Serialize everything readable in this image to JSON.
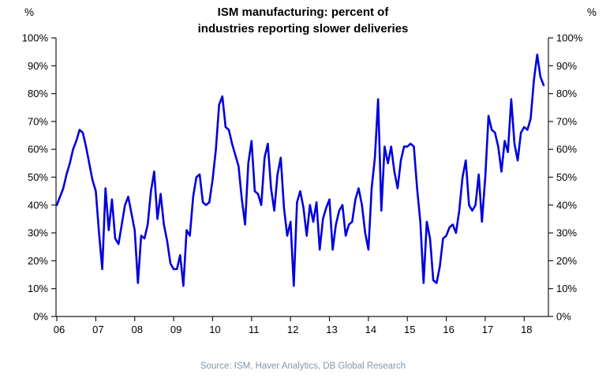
{
  "title": {
    "line1": "ISM manufacturing: percent of",
    "line2": "industries reporting slower deliveries"
  },
  "axes": {
    "y_unit_left": "%",
    "y_unit_right": "%"
  },
  "source": "Source: ISM, Haver Analytics, DB Global Research",
  "chart_data": {
    "type": "line",
    "title": "ISM manufacturing: percent of industries reporting slower deliveries",
    "grid": false,
    "legend": false,
    "line_color": "#0000dd",
    "axis_color": "#1a1a1a",
    "x_axis": {
      "tick_labels": [
        "06",
        "07",
        "08",
        "09",
        "10",
        "11",
        "12",
        "13",
        "14",
        "15",
        "16",
        "17",
        "18"
      ],
      "meaning": "year",
      "frequency": "monthly",
      "range": "Jan 2006 - Jul 2018"
    },
    "y_axis": {
      "tick_labels": [
        "0%",
        "10%",
        "20%",
        "30%",
        "40%",
        "50%",
        "60%",
        "70%",
        "80%",
        "90%",
        "100%"
      ],
      "min": 0,
      "max": 100,
      "unit": "%",
      "sides": "both"
    },
    "series": [
      {
        "name": "Percent of industries reporting slower deliveries",
        "start": "2006-01",
        "frequency": "monthly",
        "values": [
          40,
          43,
          46,
          51,
          55,
          60,
          63,
          67,
          66,
          61,
          55,
          49,
          45,
          30,
          17,
          46,
          31,
          42,
          28,
          26,
          33,
          40,
          43,
          37,
          31,
          12,
          29,
          28,
          33,
          45,
          52,
          35,
          44,
          33,
          27,
          19,
          17,
          17,
          22,
          11,
          31,
          29,
          43,
          50,
          51,
          41,
          40,
          41,
          49,
          60,
          76,
          79,
          68,
          67,
          62,
          58,
          54,
          42,
          33,
          55,
          63,
          45,
          44,
          40,
          57,
          62,
          46,
          38,
          51,
          57,
          39,
          29,
          34,
          11,
          41,
          45,
          39,
          29,
          40,
          34,
          41,
          24,
          35,
          39,
          42,
          24,
          33,
          38,
          40,
          29,
          33,
          34,
          42,
          46,
          40,
          30,
          24,
          46,
          57,
          78,
          38,
          61,
          55,
          61,
          52,
          46,
          56,
          61,
          61,
          62,
          61,
          46,
          34,
          12,
          34,
          28,
          13,
          12,
          18,
          28,
          29,
          32,
          33,
          30,
          38,
          50,
          56,
          40,
          38,
          40,
          51,
          34,
          50,
          72,
          67,
          66,
          61,
          52,
          63,
          59,
          78,
          62,
          56,
          66,
          68,
          67,
          71,
          85,
          94,
          86,
          83
        ]
      }
    ]
  }
}
